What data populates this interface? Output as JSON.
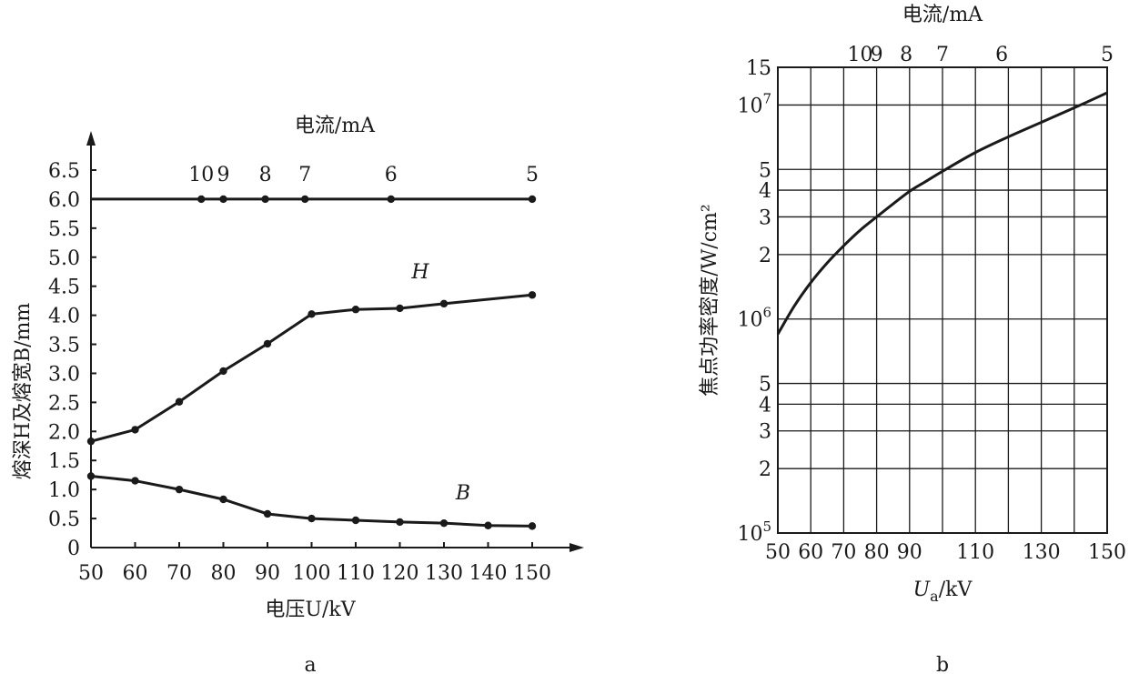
{
  "chart_data": [
    {
      "panel_label": "a",
      "type": "line",
      "xlabel": "电压U/kV",
      "ylabel": "熔深H及熔宽B/mm",
      "top_label": "电流/mA",
      "xlim": [
        50,
        150
      ],
      "ylim": [
        0,
        6.5
      ],
      "x_ticks": [
        50,
        60,
        70,
        80,
        90,
        100,
        110,
        120,
        130,
        140,
        150
      ],
      "y_ticks": [
        "0",
        "0.5",
        "1.0",
        "1.5",
        "2.0",
        "2.5",
        "3.0",
        "3.5",
        "4.0",
        "4.5",
        "5.0",
        "5.5",
        "6.0",
        "6.5"
      ],
      "top_ticks": [
        {
          "label": "10",
          "x": 75
        },
        {
          "label": "9",
          "x": 80
        },
        {
          "label": "8",
          "x": 89.5
        },
        {
          "label": "7",
          "x": 98.5
        },
        {
          "label": "6",
          "x": 118
        },
        {
          "label": "5",
          "x": 150
        }
      ],
      "series": [
        {
          "name": "current",
          "x": [
            50,
            75,
            80,
            89.5,
            98.5,
            118,
            150
          ],
          "y": [
            6.0,
            6.0,
            6.0,
            6.0,
            6.0,
            6.0,
            6.0
          ],
          "markers": [
            false,
            true,
            true,
            true,
            true,
            true,
            true
          ]
        },
        {
          "name": "H",
          "x": [
            50,
            60,
            70,
            80,
            90,
            100,
            110,
            120,
            130,
            150
          ],
          "y": [
            1.83,
            2.03,
            2.51,
            3.04,
            3.51,
            4.02,
            4.1,
            4.12,
            4.2,
            4.35
          ]
        },
        {
          "name": "B",
          "x": [
            50,
            60,
            70,
            80,
            90,
            100,
            110,
            120,
            130,
            140,
            150
          ],
          "y": [
            1.23,
            1.15,
            1.0,
            0.83,
            0.58,
            0.5,
            0.47,
            0.44,
            0.42,
            0.38,
            0.37
          ]
        }
      ]
    },
    {
      "panel_label": "b",
      "type": "line",
      "xlabel": "Ua/kV",
      "xlabel_main": "U",
      "xlabel_sub": "a",
      "xlabel_unit": "/kV",
      "ylabel": "焦点功率密度/W/cm²",
      "top_label": "电流/mA",
      "y_scale": "log",
      "ylim": [
        100000,
        15000000
      ],
      "x_ticks": [
        50,
        60,
        70,
        80,
        90,
        110,
        130,
        150
      ],
      "x_grid": [
        50,
        60,
        70,
        80,
        90,
        100,
        110,
        120,
        130,
        140,
        150
      ],
      "y_major_ticks": [
        {
          "value": 100000,
          "base": "10",
          "exp": "5"
        },
        {
          "value": 1000000,
          "base": "10",
          "exp": "6"
        },
        {
          "value": 10000000,
          "base": "10",
          "exp": "7"
        }
      ],
      "y_minor_ticks": [
        {
          "value": 200000,
          "label": "2"
        },
        {
          "value": 300000,
          "label": "3"
        },
        {
          "value": 400000,
          "label": "4"
        },
        {
          "value": 500000,
          "label": "5"
        },
        {
          "value": 2000000,
          "label": "2"
        },
        {
          "value": 3000000,
          "label": "3"
        },
        {
          "value": 4000000,
          "label": "4"
        },
        {
          "value": 5000000,
          "label": "5"
        },
        {
          "value": 20000000,
          "label": "2"
        },
        {
          "value": 30000000,
          "label": "3"
        },
        {
          "value": 40000000,
          "label": "4"
        },
        {
          "value": 50000000,
          "label": "5"
        }
      ],
      "y_top_label": "15",
      "top_ticks": [
        {
          "label": "10",
          "x": 75
        },
        {
          "label": "9",
          "x": 80
        },
        {
          "label": "8",
          "x": 89
        },
        {
          "label": "7",
          "x": 100
        },
        {
          "label": "6",
          "x": 118
        },
        {
          "label": "5",
          "x": 150
        }
      ],
      "series": [
        {
          "name": "power density",
          "x": [
            50,
            55,
            60,
            65,
            70,
            75,
            80,
            85,
            90,
            95,
            100,
            110,
            120,
            130,
            140,
            150
          ],
          "y": [
            850000,
            1150000,
            1480000,
            1830000,
            2200000,
            2600000,
            3000000,
            3450000,
            3950000,
            4400000,
            4900000,
            6000000,
            7100000,
            8300000,
            9700000,
            11400000
          ]
        }
      ]
    }
  ]
}
